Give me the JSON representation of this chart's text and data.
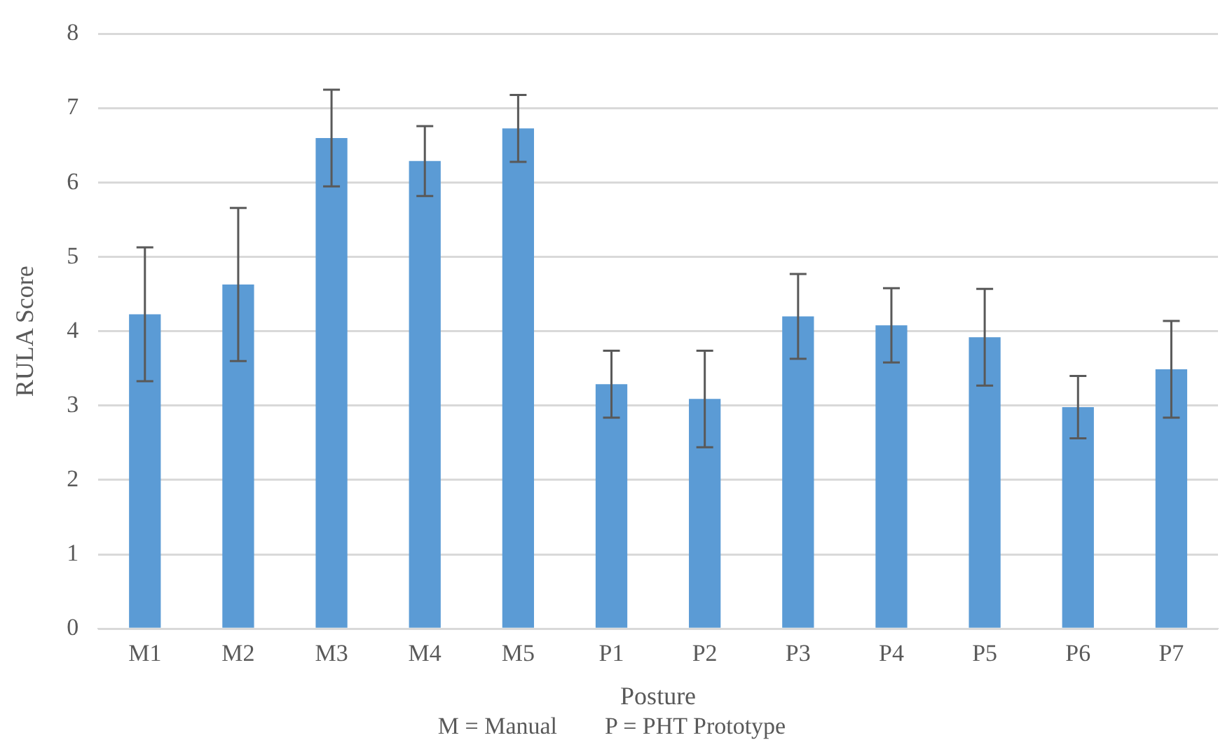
{
  "chart_data": {
    "type": "bar",
    "xlabel": "Posture",
    "ylabel": "RULA Score",
    "annotations": [
      "M = Manual        P = PHT Prototype"
    ],
    "categories": [
      "M1",
      "M2",
      "M3",
      "M4",
      "M5",
      "P1",
      "P2",
      "P3",
      "P4",
      "P5",
      "P6",
      "P7"
    ],
    "values": [
      4.23,
      4.63,
      6.6,
      6.29,
      6.73,
      3.29,
      3.09,
      4.2,
      4.08,
      3.92,
      2.98,
      3.49
    ],
    "errors": [
      0.9,
      1.03,
      0.65,
      0.47,
      0.45,
      0.45,
      0.65,
      0.57,
      0.5,
      0.65,
      0.42,
      0.65
    ],
    "color": "#5b9bd5",
    "ylim": [
      0,
      8
    ],
    "yticks": [
      0,
      1,
      2,
      3,
      4,
      5,
      6,
      7,
      8
    ],
    "grid": "y",
    "legend": false
  }
}
